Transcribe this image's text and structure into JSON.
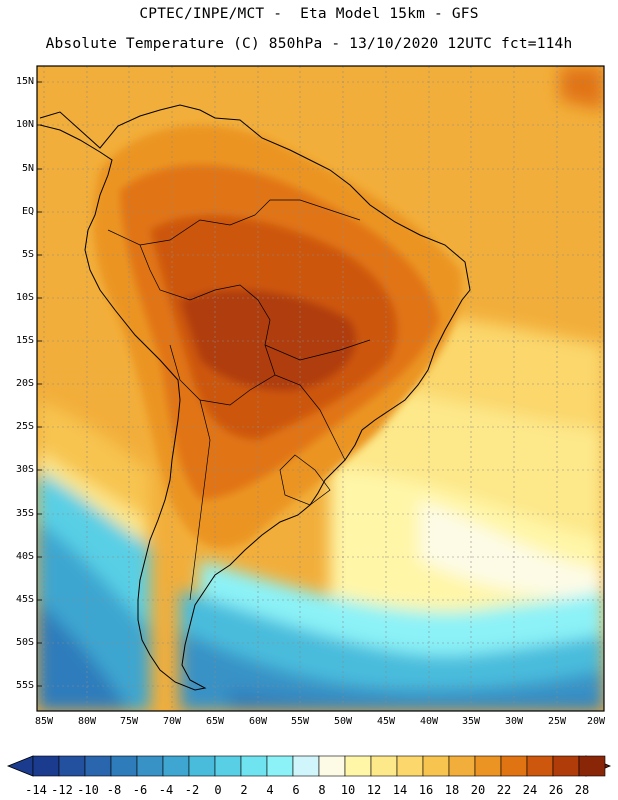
{
  "header": {
    "line1": "CPTEC/INPE/MCT -  Eta Model 15km - GFS",
    "line2": "Absolute Temperature (C) 850hPa - 13/10/2020 12UTC fct=114h"
  },
  "map": {
    "lat_labels": [
      "15N",
      "10N",
      "5N",
      "EQ",
      "5S",
      "10S",
      "15S",
      "20S",
      "25S",
      "30S",
      "35S",
      "40S",
      "45S",
      "50S",
      "55S"
    ],
    "lon_labels": [
      "85W",
      "80W",
      "75W",
      "70W",
      "65W",
      "60W",
      "55W",
      "50W",
      "45W",
      "40W",
      "35W",
      "30W",
      "25W",
      "20W"
    ],
    "colors": {
      "frame": "#000000",
      "grid": "#8a8a8a"
    }
  },
  "colorbar": {
    "labels": [
      "-14",
      "-12",
      "-10",
      "-8",
      "-6",
      "-4",
      "-2",
      "0",
      "2",
      "4",
      "6",
      "8",
      "10",
      "12",
      "14",
      "16",
      "18",
      "20",
      "22",
      "24",
      "26",
      "28"
    ],
    "colors": [
      "#1b3b8f",
      "#23509f",
      "#2a66ad",
      "#2f7cbb",
      "#3892c6",
      "#3ea6d0",
      "#49bcdc",
      "#59cfe5",
      "#6fe3ef",
      "#8cf2f7",
      "#d0f6fb",
      "#fdfbe6",
      "#fff6a8",
      "#fde88a",
      "#fbd76c",
      "#f7c450",
      "#f2ae3a",
      "#eb9423",
      "#e17412",
      "#cd570c",
      "#b03c09",
      "#8a2608"
    ]
  }
}
